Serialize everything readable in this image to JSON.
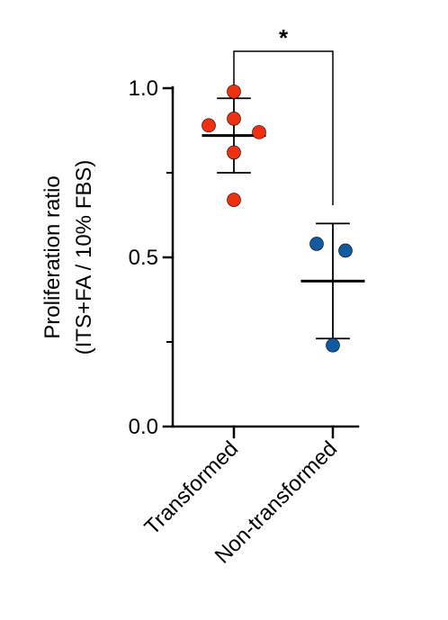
{
  "chart_data": {
    "type": "scatter",
    "style": "dot plot with mean and SD error bars",
    "ylabel_line1": "Proliferation ratio",
    "ylabel_line2": "(ITS+FA / 10% FBS)",
    "xlabel": "",
    "ylim": [
      0,
      1.0
    ],
    "y_ticks": [
      "0.0",
      "0.5",
      "1.0"
    ],
    "y_tick_values": [
      0,
      0.5,
      1.0
    ],
    "y_minor_ticks": [
      0.25,
      0.75
    ],
    "categories": [
      "Transformed",
      "Non-transformed"
    ],
    "groups": [
      {
        "category": "Transformed",
        "color": "#f2300f",
        "points": [
          0.99,
          0.89,
          0.91,
          0.87,
          0.81,
          0.67
        ],
        "mean": 0.86,
        "sd_upper": 0.97,
        "sd_lower": 0.75
      },
      {
        "category": "Non-transformed",
        "color": "#0f5aa0",
        "points": [
          0.54,
          0.52,
          0.24
        ],
        "mean": 0.43,
        "sd_upper": 0.6,
        "sd_lower": 0.26
      }
    ],
    "significance": {
      "label": "*",
      "between": [
        "Transformed",
        "Non-transformed"
      ]
    },
    "grid": false,
    "legend": "none"
  }
}
